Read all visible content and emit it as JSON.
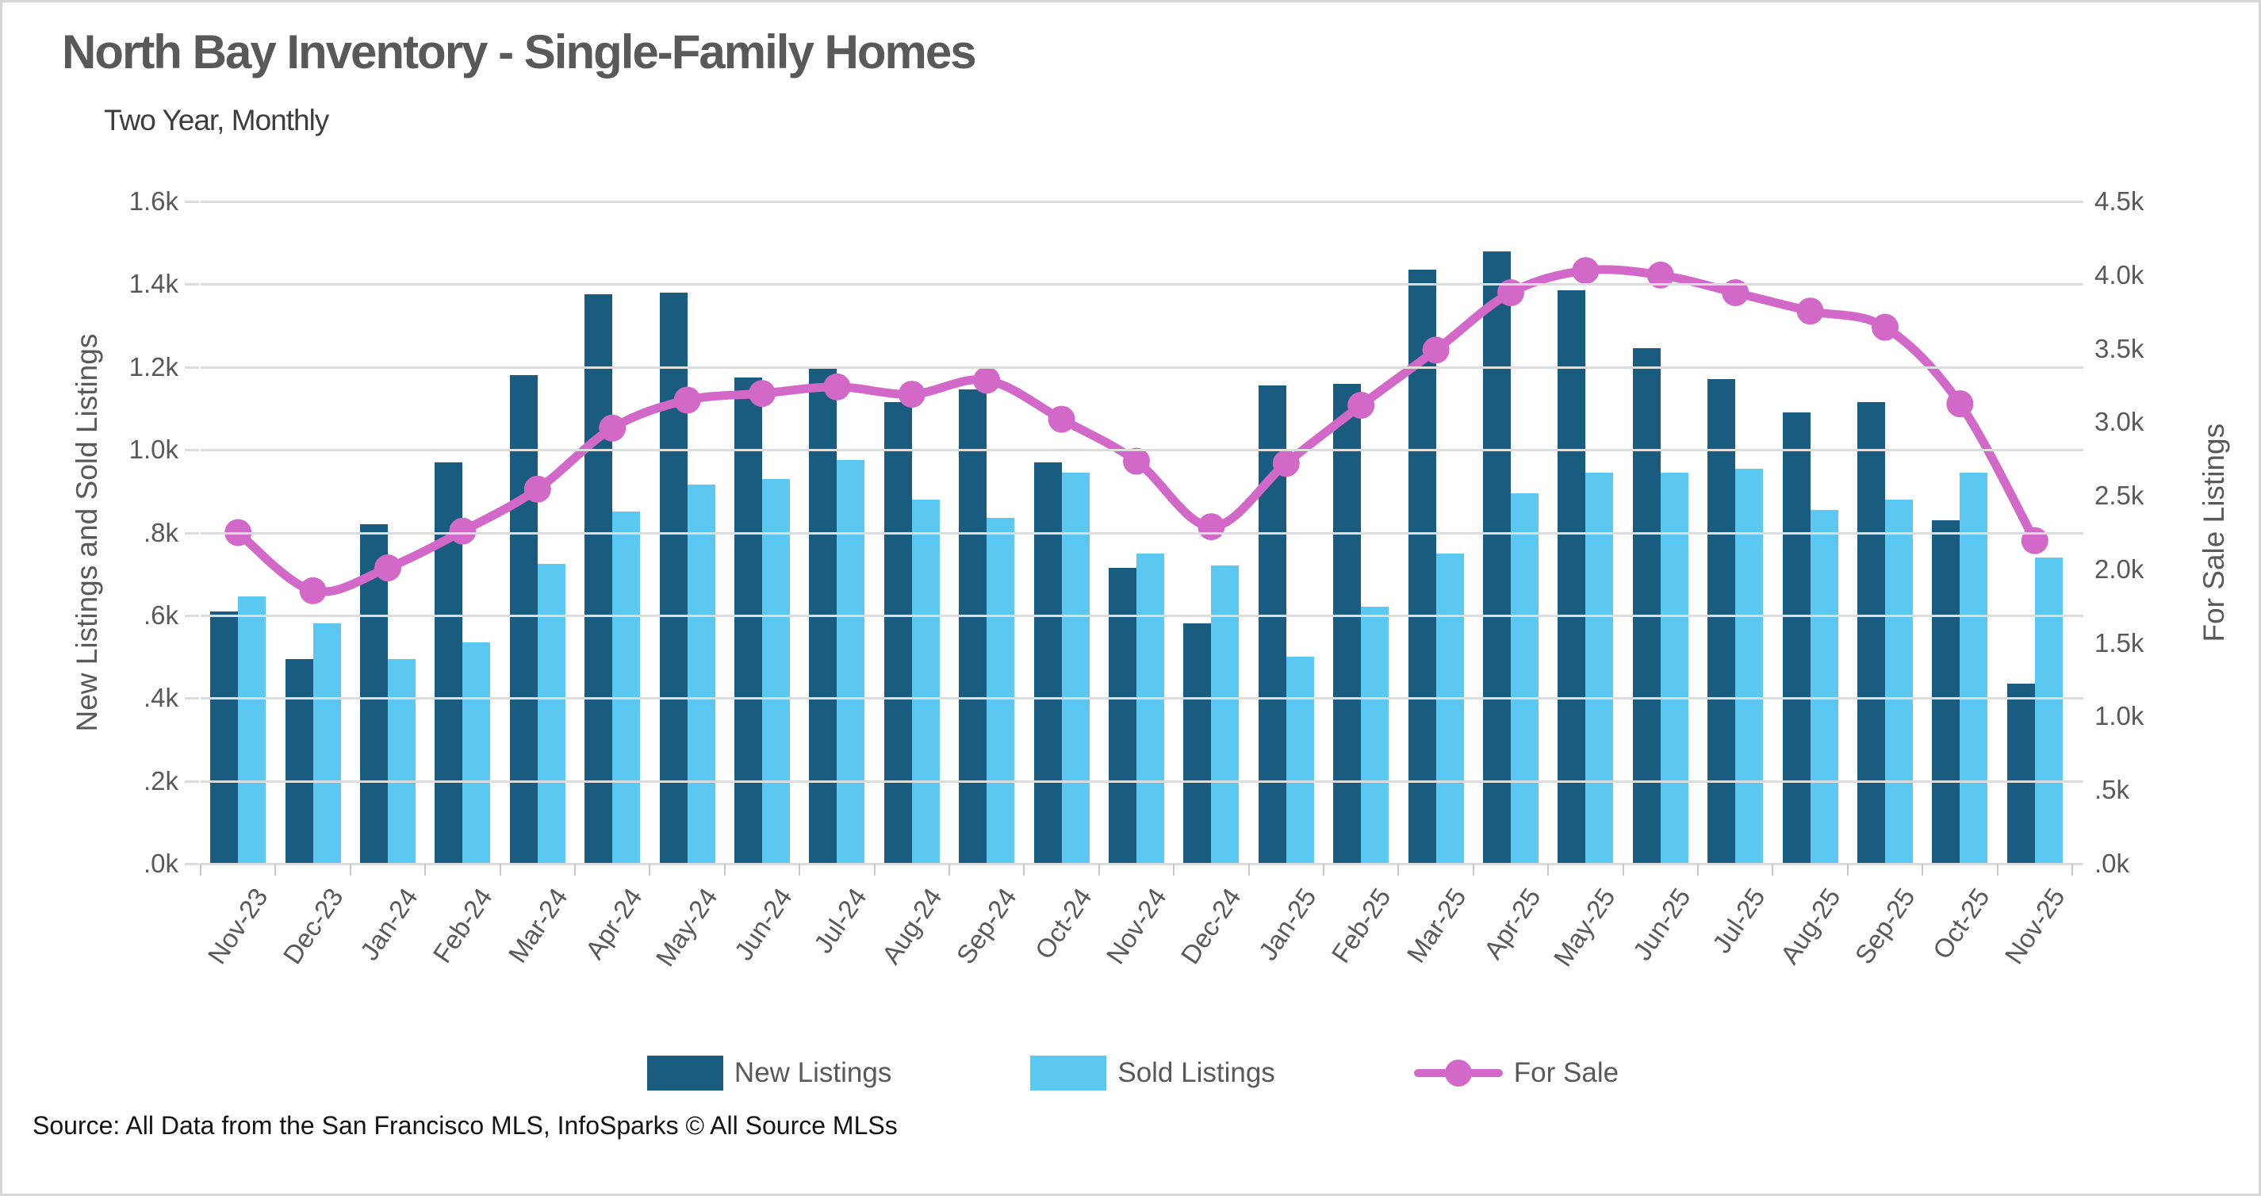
{
  "page": {
    "title": "North Bay Inventory - Single-Family Homes",
    "subtitle": "Two Year, Monthly",
    "source": "Source: All Data from the San Francisco MLS, InfoSparks © All Source MLSs"
  },
  "colors": {
    "new_listings": "#1a5c7f",
    "sold_listings": "#5ac8f1",
    "for_sale": "#d269c8",
    "gridline": "#dcdcdc",
    "tick_text": "#595959",
    "title_text": "#595959"
  },
  "chart_data": {
    "type": "bar",
    "subtype": "grouped bars with secondary-axis line",
    "title": "North Bay Inventory - Single-Family Homes",
    "subtitle": "Two Year, Monthly",
    "grid": true,
    "legend_position": "bottom",
    "categories": [
      "Nov-23",
      "Dec-23",
      "Jan-24",
      "Feb-24",
      "Mar-24",
      "Apr-24",
      "May-24",
      "Jun-24",
      "Jul-24",
      "Aug-24",
      "Sep-24",
      "Oct-24",
      "Nov-24",
      "Dec-24",
      "Jan-25",
      "Feb-25",
      "Mar-25",
      "Apr-25",
      "May-25",
      "Jun-25",
      "Jul-25",
      "Aug-25",
      "Sep-25",
      "Oct-25",
      "Nov-25"
    ],
    "left_axis": {
      "label": "New Listings and Sold Listings",
      "min": 0,
      "max": 1600,
      "tick_step": 200,
      "tick_labels_top_to_bottom": [
        "1.6k",
        "1.4k",
        "1.2k",
        "1.0k",
        ".8k",
        ".6k",
        ".4k",
        ".2k",
        ".0k"
      ]
    },
    "right_axis": {
      "label": "For Sale Listings",
      "min": 0,
      "max": 4500,
      "tick_step": 500,
      "tick_labels_top_to_bottom": [
        "4.5k",
        "4.0k",
        "3.5k",
        "3.0k",
        "2.5k",
        "2.0k",
        "1.5k",
        "1.0k",
        ".5k",
        ".0k"
      ]
    },
    "series": [
      {
        "name": "New Listings",
        "type": "bar",
        "axis": "left",
        "color": "#1a5c7f",
        "values": [
          610,
          495,
          820,
          970,
          1180,
          1375,
          1380,
          1175,
          1200,
          1115,
          1145,
          970,
          715,
          580,
          1155,
          1160,
          1435,
          1480,
          1385,
          1245,
          1170,
          1090,
          1115,
          830,
          435
        ]
      },
      {
        "name": "Sold Listings",
        "type": "bar",
        "axis": "left",
        "color": "#5ac8f1",
        "values": [
          645,
          580,
          495,
          535,
          725,
          850,
          915,
          930,
          975,
          880,
          835,
          945,
          750,
          720,
          500,
          620,
          750,
          895,
          945,
          945,
          955,
          855,
          880,
          945,
          740
        ]
      },
      {
        "name": "For Sale",
        "type": "line",
        "axis": "right",
        "color": "#d269c8",
        "values": [
          2250,
          1855,
          2010,
          2260,
          2545,
          2960,
          3150,
          3195,
          3240,
          3190,
          3285,
          3020,
          2735,
          2290,
          2720,
          3115,
          3490,
          3880,
          4030,
          4000,
          3880,
          3755,
          3645,
          3125,
          2195
        ]
      }
    ]
  }
}
